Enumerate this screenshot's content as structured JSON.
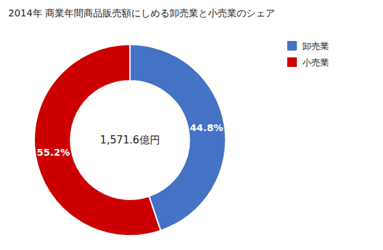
{
  "chart_data": {
    "type": "donut",
    "title": "2014年 商業年間商品販売額にしめる卸売業と小売業のシェア",
    "categories": [
      "卸売業",
      "小売業"
    ],
    "values": [
      44.8,
      55.2
    ],
    "value_labels": [
      "44.8%",
      "55.2%"
    ],
    "colors": [
      "#4472C4",
      "#CC0000"
    ],
    "annotations": [
      "1,571.6億円"
    ],
    "data_labels": true,
    "legend": "upper right"
  }
}
